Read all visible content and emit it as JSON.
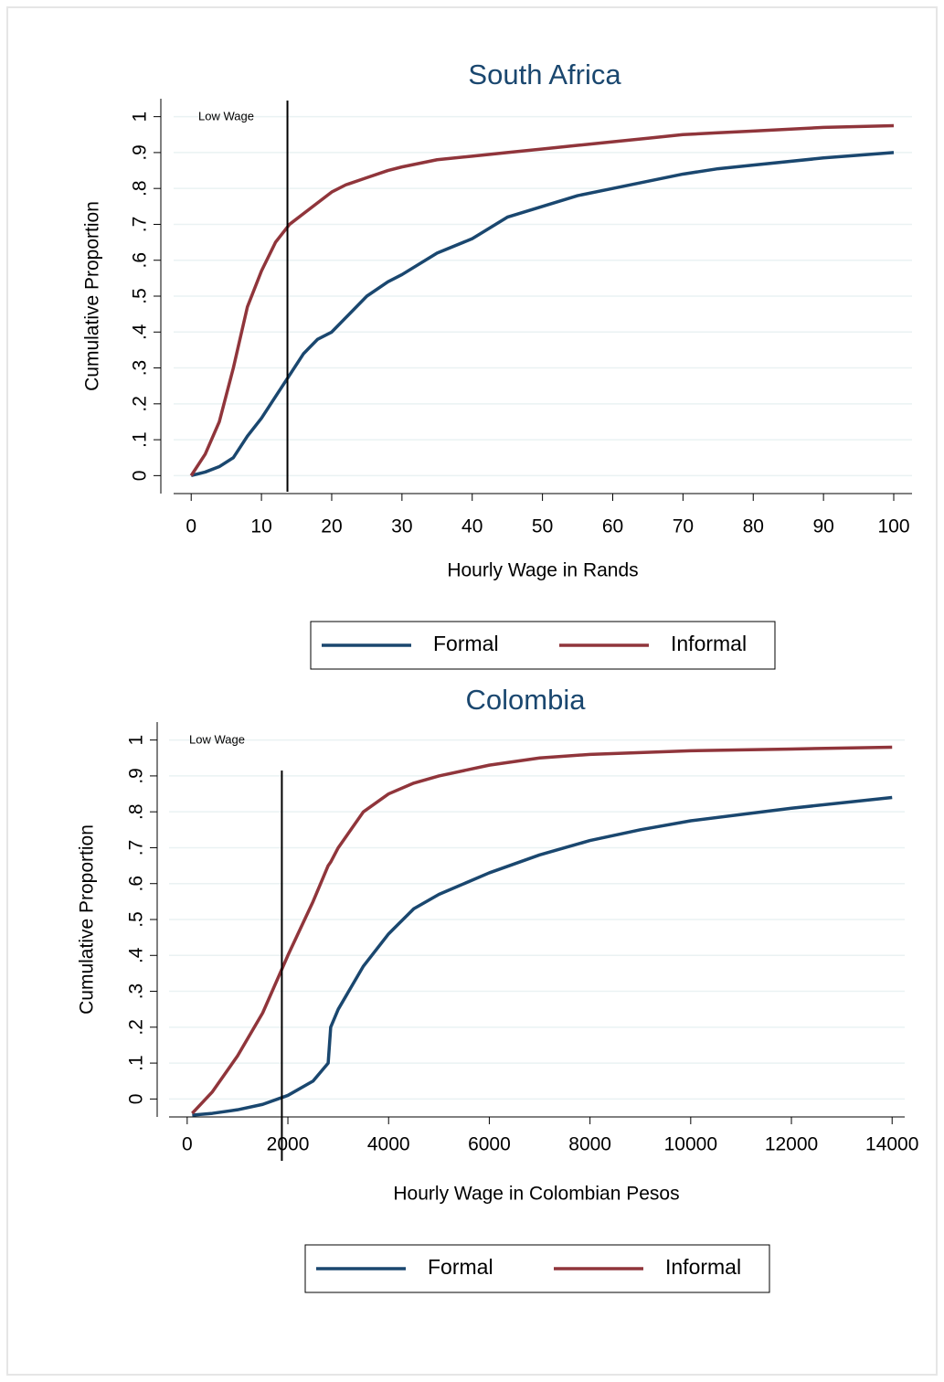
{
  "chart_data": [
    {
      "type": "line",
      "title": "South Africa",
      "x_label": "Hourly Wage in Rands",
      "y_label": "Cumulative Proportion",
      "x": [
        0,
        2,
        4,
        6,
        8,
        10,
        12,
        14,
        16,
        18,
        20,
        22,
        25,
        28,
        30,
        35,
        40,
        45,
        50,
        55,
        60,
        65,
        70,
        75,
        80,
        90,
        100
      ],
      "series": [
        {
          "name": "Formal",
          "color": "#1a476f",
          "values": [
            0,
            0.01,
            0.025,
            0.05,
            0.11,
            0.16,
            0.22,
            0.28,
            0.34,
            0.38,
            0.4,
            0.44,
            0.5,
            0.54,
            0.56,
            0.62,
            0.66,
            0.72,
            0.75,
            0.78,
            0.8,
            0.82,
            0.84,
            0.855,
            0.865,
            0.885,
            0.9
          ]
        },
        {
          "name": "Informal",
          "color": "#90353b",
          "values": [
            0,
            0.06,
            0.15,
            0.3,
            0.47,
            0.57,
            0.65,
            0.7,
            0.73,
            0.76,
            0.79,
            0.81,
            0.83,
            0.85,
            0.86,
            0.88,
            0.89,
            0.9,
            0.91,
            0.92,
            0.93,
            0.94,
            0.95,
            0.955,
            0.96,
            0.97,
            0.975
          ]
        }
      ],
      "annotations": [
        {
          "text": "Low Wage",
          "x": 13.7
        }
      ],
      "xlim": [
        -2.5,
        102.6
      ],
      "ylim": [
        -0.05,
        1.05
      ],
      "xticks": [
        0,
        10,
        20,
        30,
        40,
        50,
        60,
        70,
        80,
        90,
        100
      ],
      "yticks": [
        0,
        {
          "value": 0.1,
          "label": ".1"
        },
        {
          "value": 0.2,
          "label": ".2"
        },
        {
          "value": 0.3,
          "label": ".3"
        },
        {
          "value": 0.4,
          "label": ".4"
        },
        {
          "value": 0.5,
          "label": ".5"
        },
        {
          "value": 0.6,
          "label": ".6"
        },
        {
          "value": 0.7,
          "label": ".7"
        },
        {
          "value": 0.8,
          "label": ".8"
        },
        {
          "value": 0.9,
          "label": ".9"
        },
        1
      ],
      "grid": true,
      "legend": "bottom"
    },
    {
      "type": "line",
      "title": "Colombia",
      "x_label": "Hourly Wage in Colombian Pesos",
      "y_label": "Cumulative Proportion",
      "x": [
        100,
        500,
        1000,
        1500,
        2000,
        2500,
        2800,
        2850,
        3000,
        3500,
        4000,
        4500,
        5000,
        6000,
        7000,
        8000,
        9000,
        10000,
        12000,
        14000
      ],
      "series": [
        {
          "name": "Formal",
          "color": "#1a476f",
          "values": [
            -0.045,
            -0.04,
            -0.03,
            -0.015,
            0.01,
            0.05,
            0.1,
            0.2,
            0.25,
            0.37,
            0.46,
            0.53,
            0.57,
            0.63,
            0.68,
            0.72,
            0.75,
            0.775,
            0.81,
            0.84
          ]
        },
        {
          "name": "Informal",
          "color": "#90353b",
          "values": [
            -0.04,
            0.02,
            0.12,
            0.24,
            0.4,
            0.55,
            0.65,
            0.66,
            0.7,
            0.8,
            0.85,
            0.88,
            0.9,
            0.93,
            0.95,
            0.96,
            0.965,
            0.97,
            0.975,
            0.98
          ]
        }
      ],
      "annotations": [
        {
          "text": "Low Wage",
          "x": 1880
        }
      ],
      "xlim": [
        -360,
        14250
      ],
      "ylim": [
        -0.05,
        1.05
      ],
      "xticks": [
        0,
        2000,
        4000,
        6000,
        8000,
        10000,
        12000,
        14000
      ],
      "yticks": [
        0,
        {
          "value": 0.1,
          "label": ".1"
        },
        {
          "value": 0.2,
          "label": ".2"
        },
        {
          "value": 0.3,
          "label": ".3"
        },
        {
          "value": 0.4,
          "label": ".4"
        },
        {
          "value": 0.5,
          "label": ".5"
        },
        {
          "value": 0.6,
          "label": ".6"
        },
        {
          "value": 0.7,
          "label": ".7"
        },
        {
          "value": 0.8,
          "label": ".8"
        },
        {
          "value": 0.9,
          "label": ".9"
        },
        1
      ],
      "grid": true,
      "legend": "bottom"
    }
  ]
}
